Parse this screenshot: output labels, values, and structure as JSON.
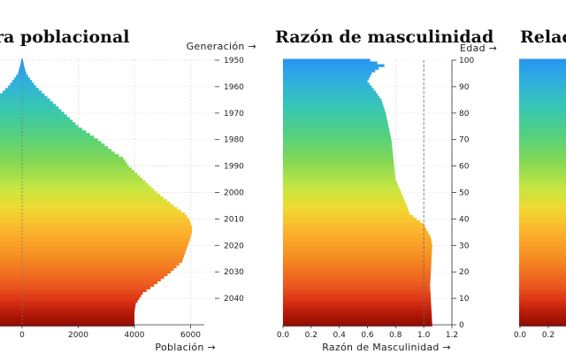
{
  "chart_data": [
    {
      "type": "bar",
      "orientation": "horizontal",
      "title": "Estructura poblacional",
      "title_visible": "ra poblacional",
      "xlabel": "Población →",
      "ylabel": "Generación →",
      "xlim": [
        -1400,
        6500
      ],
      "xticks": [
        0,
        2000,
        4000,
        6000
      ],
      "xtick_labels": [
        "0",
        "2000",
        "4000",
        "6000"
      ],
      "generation_ticks": [
        "1950",
        "1960",
        "1970",
        "1980",
        "1990",
        "2000",
        "2010",
        "2020",
        "2030",
        "2040"
      ],
      "age_range": [
        0,
        100
      ],
      "profile_age": [
        0,
        5,
        8,
        12,
        15,
        20,
        24,
        27,
        30,
        33,
        35,
        37,
        40,
        42,
        45,
        50,
        55,
        60,
        63,
        65,
        70,
        75,
        80,
        85,
        90,
        93,
        95,
        98,
        100
      ],
      "population": [
        4000,
        4000,
        4050,
        4300,
        4700,
        5300,
        5700,
        5800,
        5900,
        6000,
        6050,
        6050,
        5950,
        5800,
        5400,
        4800,
        4300,
        3800,
        3600,
        3300,
        2700,
        2000,
        1500,
        1000,
        500,
        280,
        150,
        70,
        30
      ]
    },
    {
      "type": "bar",
      "orientation": "horizontal",
      "title": "Razón de masculinidad",
      "xlabel": "Razón de Masculinidad →",
      "ylabel": "Edad →",
      "xlim": [
        0,
        1.2
      ],
      "xticks": [
        0,
        0.2,
        0.4,
        0.6,
        0.8,
        1.0,
        1.2
      ],
      "xtick_labels": [
        "0.0",
        "0.2",
        "0.4",
        "0.6",
        "0.8",
        "1.0",
        "1.2"
      ],
      "yticks": [
        0,
        10,
        20,
        30,
        40,
        50,
        60,
        70,
        80,
        90,
        100
      ],
      "reference_line": 1.0,
      "profile_age": [
        0,
        5,
        10,
        15,
        20,
        25,
        30,
        33,
        35,
        38,
        40,
        42,
        45,
        50,
        55,
        60,
        65,
        70,
        75,
        80,
        85,
        88,
        90,
        92,
        95,
        97,
        98,
        99,
        100
      ],
      "ratio": [
        1.06,
        1.055,
        1.05,
        1.045,
        1.05,
        1.055,
        1.06,
        1.05,
        1.03,
        1.0,
        0.95,
        0.9,
        0.88,
        0.84,
        0.8,
        0.79,
        0.78,
        0.77,
        0.75,
        0.73,
        0.7,
        0.66,
        0.63,
        0.6,
        0.63,
        0.68,
        0.72,
        0.67,
        0.62
      ]
    },
    {
      "type": "bar",
      "orientation": "horizontal",
      "title": "Relación",
      "title_visible": "Relac",
      "xtick_labels": [
        "0.0",
        "0.2"
      ]
    }
  ]
}
